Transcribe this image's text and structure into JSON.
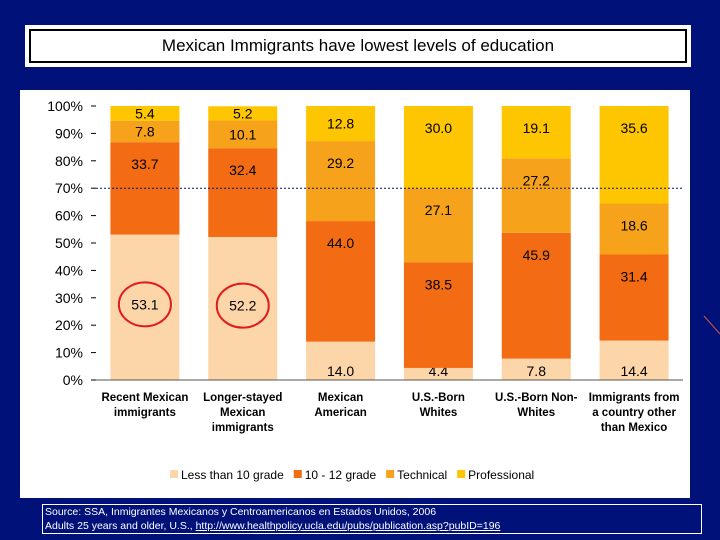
{
  "title": "Mexican Immigrants have lowest levels of education",
  "chart_data": {
    "type": "bar",
    "stacked": true,
    "percent": true,
    "categories": [
      [
        "Recent Mexican",
        "immigrants"
      ],
      [
        "Longer-stayed",
        "Mexican",
        "immigrants"
      ],
      [
        "Mexican",
        "American"
      ],
      [
        "U.S.-Born",
        "Whites"
      ],
      [
        "U.S.-Born Non-",
        "Whites"
      ],
      [
        "Immigrants from",
        "a country other",
        "than Mexico"
      ]
    ],
    "series": [
      {
        "name": "Less than 10 grade",
        "color": "#fcd5a8",
        "values": [
          53.1,
          52.2,
          14.0,
          4.4,
          7.8,
          14.4
        ],
        "labels": [
          "53.1",
          "52.2",
          "14.0",
          "4.4",
          "7.8",
          "14.4"
        ]
      },
      {
        "name": "10 - 12 grade",
        "color": "#f36b12",
        "values": [
          33.7,
          32.4,
          44.0,
          38.5,
          45.9,
          31.4
        ],
        "labels": [
          "33.7",
          "32.4",
          "44.0",
          "38.5",
          "45.9",
          "31.4"
        ]
      },
      {
        "name": "Technical",
        "color": "#f7a21b",
        "values": [
          7.8,
          10.1,
          29.2,
          27.1,
          27.2,
          18.6
        ],
        "labels": [
          "7.8",
          "10.1",
          "29.2",
          "27.1",
          "27.2",
          "18.6"
        ]
      },
      {
        "name": "Professional",
        "color": "#fec600",
        "values": [
          5.4,
          5.2,
          12.8,
          30.0,
          19.1,
          35.6
        ],
        "labels": [
          "5.4",
          "5.2",
          "12.8",
          "30.0",
          "19.1",
          "35.6"
        ]
      }
    ],
    "yticks": [
      "0%",
      "10%",
      "20%",
      "30%",
      "40%",
      "50%",
      "60%",
      "70%",
      "80%",
      "90%",
      "100%"
    ],
    "ylim": [
      0,
      100
    ],
    "reference_line": 70,
    "highlighted": [
      0,
      1
    ],
    "highlight_color": "#e11b1b",
    "legend_position": "bottom"
  },
  "source": {
    "line1": "Source: SSA, Inmigrantes Mexicanos y Centroamericanos en Estados Unidos, 2006",
    "line2_prefix": "Adults 25 years and older, U.S., ",
    "url": "http://www.healthpolicy.ucla.edu/pubs/publication.asp?pubID=196"
  }
}
